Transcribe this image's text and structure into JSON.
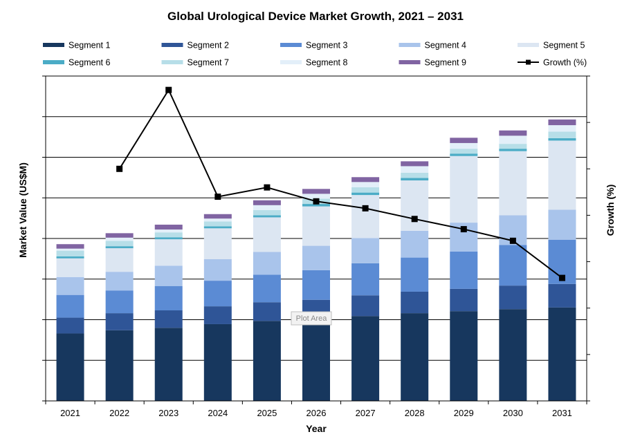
{
  "chart_data": {
    "type": "bar",
    "stacked": true,
    "title": "Global Urological Device Market Growth, 2021 – 2031",
    "xlabel": "Year",
    "ylabel": "Market Value (US$M)",
    "y2label": "Growth (%)",
    "categories": [
      "2021",
      "2022",
      "2023",
      "2024",
      "2025",
      "2026",
      "2027",
      "2028",
      "2029",
      "2030",
      "2031"
    ],
    "ylim": [
      0,
      8
    ],
    "y2lim": [
      0,
      7
    ],
    "grid": true,
    "legend_position": "top",
    "tooltip": "Plot Area",
    "series": [
      {
        "name": "Segment 1",
        "color": "#17375e",
        "values": [
          1.66,
          1.74,
          1.8,
          1.89,
          1.97,
          2.02,
          2.09,
          2.16,
          2.21,
          2.26,
          2.3
        ]
      },
      {
        "name": "Segment 2",
        "color": "#2f5597",
        "values": [
          0.39,
          0.42,
          0.43,
          0.44,
          0.46,
          0.47,
          0.51,
          0.53,
          0.55,
          0.58,
          0.58
        ]
      },
      {
        "name": "Segment 3",
        "color": "#5b8bd4",
        "values": [
          0.56,
          0.56,
          0.6,
          0.63,
          0.68,
          0.73,
          0.79,
          0.84,
          0.92,
          1.0,
          1.09
        ]
      },
      {
        "name": "Segment 4",
        "color": "#a9c4eb",
        "values": [
          0.44,
          0.46,
          0.5,
          0.53,
          0.56,
          0.6,
          0.62,
          0.66,
          0.71,
          0.73,
          0.74
        ]
      },
      {
        "name": "Segment 5",
        "color": "#dce6f2",
        "values": [
          0.46,
          0.58,
          0.65,
          0.76,
          0.85,
          0.97,
          1.06,
          1.24,
          1.64,
          1.58,
          1.7
        ]
      },
      {
        "name": "Segment 6",
        "color": "#4bacc6",
        "values": [
          0.05,
          0.05,
          0.05,
          0.05,
          0.05,
          0.06,
          0.06,
          0.06,
          0.06,
          0.06,
          0.06
        ]
      },
      {
        "name": "Segment 7",
        "color": "#b7dee8",
        "values": [
          0.14,
          0.13,
          0.12,
          0.12,
          0.13,
          0.13,
          0.13,
          0.13,
          0.12,
          0.12,
          0.16
        ]
      },
      {
        "name": "Segment 8",
        "color": "#e3eff9",
        "values": [
          0.05,
          0.08,
          0.07,
          0.07,
          0.12,
          0.12,
          0.13,
          0.16,
          0.14,
          0.2,
          0.16
        ]
      },
      {
        "name": "Segment 9",
        "color": "#8064a2",
        "values": [
          0.11,
          0.11,
          0.12,
          0.11,
          0.12,
          0.12,
          0.12,
          0.12,
          0.13,
          0.13,
          0.14
        ]
      }
    ],
    "line_series": {
      "name": "Growth (%)",
      "color": "#000000",
      "axis": "secondary",
      "x": [
        "2022",
        "2023",
        "2024",
        "2025",
        "2026",
        "2027",
        "2028",
        "2029",
        "2030",
        "2031"
      ],
      "values": [
        5.0,
        6.7,
        4.4,
        4.6,
        4.3,
        4.15,
        3.92,
        3.7,
        3.45,
        2.65
      ]
    }
  }
}
